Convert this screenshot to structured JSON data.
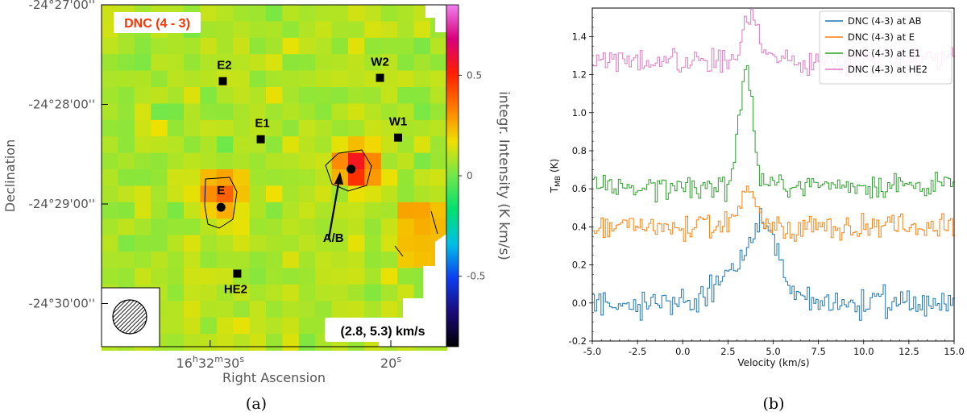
{
  "colors": {
    "map_background": "#73e84a",
    "ab_series": "#1f77b4",
    "e_series": "#ff7f0e",
    "e1_series": "#2ca02c",
    "he2_series": "#e377c2",
    "map_title": "#ff3300"
  },
  "chart_data": [
    {
      "type": "heatmap",
      "panel_label": "(a)",
      "title": "DNC (4 - 3)",
      "xlabel": "Right Ascension",
      "ylabel": "Declination",
      "x_ticks": [
        {
          "h": "16",
          "m": "32",
          "s": "30"
        },
        {
          "h": "",
          "m": "",
          "s": "20"
        }
      ],
      "y_ticks": [
        "-24°27'00''",
        "-24°28'00''",
        "-24°29'00''",
        "-24°30'00''"
      ],
      "colorbar": {
        "label": "integr. Intensity (K km/s)",
        "ticks": [
          "0.5",
          "0",
          "-0.5"
        ],
        "range": [
          -0.85,
          0.85
        ],
        "colormap": [
          "#000000",
          "#1b0a7a",
          "#0b3ef0",
          "#00bfe8",
          "#00e070",
          "#6fe84a",
          "#f0e000",
          "#ff7a00",
          "#ff1e00",
          "#d8007a",
          "#f080f0"
        ]
      },
      "velocity_range_label": "(2.8, 5.3) km/s",
      "sources": [
        {
          "name": "E2",
          "ra_s": 29.3,
          "dec": "-24°27'46''",
          "marker": "square"
        },
        {
          "name": "E1",
          "ra_s": 27.2,
          "dec": "-24°28'21''",
          "marker": "square"
        },
        {
          "name": "W2",
          "ra_s": 20.6,
          "dec": "-24°27'44''",
          "marker": "square"
        },
        {
          "name": "W1",
          "ra_s": 19.6,
          "dec": "-24°28'20''",
          "marker": "square"
        },
        {
          "name": "E",
          "ra_s": 29.4,
          "dec": "-24°29'02''",
          "marker": "circle"
        },
        {
          "name": "A/B",
          "ra_s": 22.2,
          "dec": "-24°28'39''",
          "marker": "circle"
        },
        {
          "name": "HE2",
          "ra_s": 28.5,
          "dec": "-24°29'42''",
          "marker": "square"
        }
      ],
      "peaks": [
        {
          "near": "E",
          "value": 0.35
        },
        {
          "near": "A/B",
          "value": 0.5
        }
      ]
    },
    {
      "type": "line",
      "panel_label": "(b)",
      "xlabel": "Velocity (km/s)",
      "ylabel": "T_MB (K)",
      "xlim": [
        -5.0,
        15.0
      ],
      "ylim": [
        -0.2,
        1.55
      ],
      "x_ticks": [
        "-5.0",
        "-2.5",
        "0.0",
        "2.5",
        "5.0",
        "7.5",
        "10.0",
        "12.5",
        "15.0"
      ],
      "y_ticks": [
        "-0.2",
        "0.0",
        "0.2",
        "0.4",
        "0.6",
        "0.8",
        "1.0",
        "1.2",
        "1.4"
      ],
      "legend_position": "top-right",
      "series": [
        {
          "name": "DNC (4-3) at AB",
          "baseline": 0.0,
          "noise": 0.05,
          "peak_velocity": 4.6,
          "peak_value": 0.37,
          "line_width": 1.6
        },
        {
          "name": "DNC (4-3) at E",
          "baseline": 0.4,
          "noise": 0.045,
          "peak_velocity": 3.6,
          "peak_value": 0.61,
          "line_width": 0.9
        },
        {
          "name": "DNC (4-3) at E1",
          "baseline": 0.62,
          "noise": 0.045,
          "peak_velocity": 3.5,
          "peak_value": 1.25,
          "line_width": 0.45
        },
        {
          "name": "DNC (4-3) at HE2",
          "baseline": 1.27,
          "noise": 0.05,
          "peak_velocity": 3.8,
          "peak_value": 1.49,
          "line_width": 0.5
        }
      ]
    }
  ]
}
